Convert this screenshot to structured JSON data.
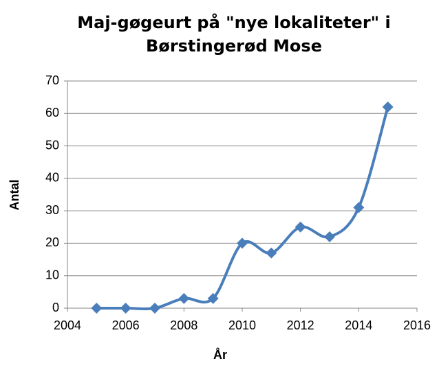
{
  "chart_data": {
    "type": "line",
    "title": "Maj-gøgeurt på \"nye lokaliteter\" i Børstingerød Mose",
    "x_label": "År",
    "y_label": "Antal",
    "x": [
      2005,
      2006,
      2007,
      2008,
      2009,
      2010,
      2011,
      2012,
      2013,
      2014,
      2015
    ],
    "series": [
      {
        "name": "Antal",
        "color": "#4a7ebb",
        "values": [
          0,
          0,
          0,
          3,
          3,
          20,
          17,
          25,
          22,
          31,
          62
        ]
      }
    ],
    "xlim": [
      2004,
      2016
    ],
    "xticks": [
      2004,
      2006,
      2008,
      2010,
      2012,
      2014,
      2016
    ],
    "ylim": [
      0,
      70
    ],
    "yticks": [
      0,
      10,
      20,
      30,
      40,
      50,
      60,
      70
    ],
    "grid": true,
    "smooth": true
  }
}
